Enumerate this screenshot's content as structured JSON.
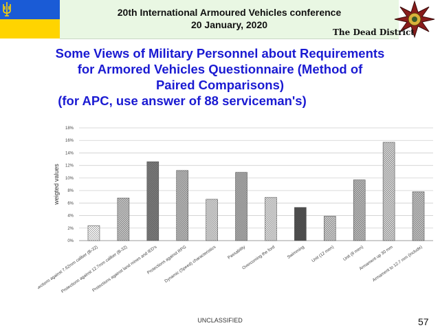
{
  "header": {
    "conference_title": "20th International Armoured Vehicles conference",
    "conference_date": "20 January, 2020",
    "org_name": "The Dead District",
    "flag_colors": {
      "blue": "#1a5bd6",
      "yellow": "#ffd400"
    }
  },
  "slide": {
    "title_lines": [
      "Some Views of Military Personnel about Requirements",
      "for Armored Vehicles Questionnaire (Method of",
      "Paired Comparisons)",
      "(for APC, use answer of 88 serviceman's)"
    ],
    "title_color": "#1a1ad2"
  },
  "chart_data": {
    "type": "bar",
    "ylabel": "weigted values",
    "xlabel": "",
    "ylim": [
      0,
      18
    ],
    "yticks": [
      "0%",
      "2%",
      "4%",
      "6%",
      "8%",
      "10%",
      "12%",
      "14%",
      "16%",
      "18%"
    ],
    "grid": true,
    "categories": [
      "Protections against 7.62mm caliber (B-32)",
      "Protections against 12.7mm caliber (B-32)",
      "Protections against land mines and IED's",
      "Protections against RPG",
      "Dynamic (Speed) characteristics",
      "Passability",
      "Overcoming the ford",
      "Swimming",
      "Unit (12 men)",
      "Unit (8 men)",
      "Armament up 30 mm",
      "Armament to 12.7 mm (include)"
    ],
    "values": [
      2.4,
      6.8,
      12.6,
      11.2,
      6.6,
      10.9,
      6.9,
      5.3,
      3.9,
      9.7,
      15.7,
      7.8
    ],
    "bar_fills": [
      "#ffffff",
      "#c8c8c8",
      "#7a7a7a",
      "#bdbdbd",
      "#e0e0e0",
      "#b0b0b0",
      "#e6e6e6",
      "#4a4a4a",
      "#d0d0d0",
      "#bcbcbc",
      "#d8d8d8",
      "#c4c4c4"
    ]
  },
  "footer": {
    "classification": "UNCLASSIFIED",
    "page_number": "57"
  }
}
